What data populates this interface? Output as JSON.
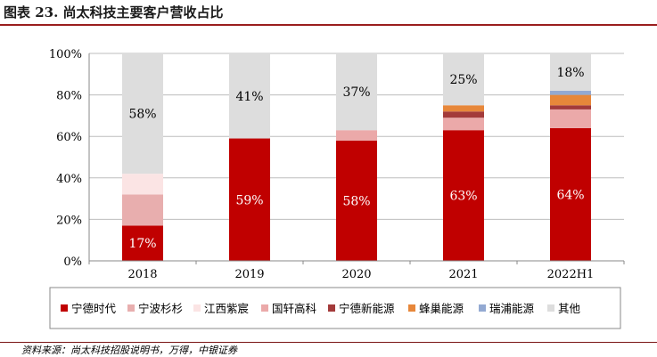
{
  "figure": {
    "title": "图表 23. 尚太科技主要客户营收占比",
    "source": "资料来源：尚太科技招股说明书，万得，中银证券"
  },
  "chart_data": {
    "type": "bar",
    "stacked": true,
    "categories": [
      "2018",
      "2019",
      "2020",
      "2021",
      "2022H1"
    ],
    "ylim": [
      0,
      100
    ],
    "yticks": [
      0,
      20,
      40,
      60,
      80,
      100
    ],
    "ytick_labels": [
      "0%",
      "20%",
      "40%",
      "60%",
      "80%",
      "100%"
    ],
    "grid": true,
    "legend_position": "bottom",
    "xlabel": "",
    "ylabel": "",
    "series": [
      {
        "name": "宁德时代",
        "color": "#c00000",
        "values": [
          17,
          59,
          58,
          63,
          64
        ]
      },
      {
        "name": "宁波杉杉",
        "color": "#e8aeae",
        "values": [
          15,
          0,
          0,
          0,
          0
        ]
      },
      {
        "name": "江西紫宸",
        "color": "#fbe4e4",
        "values": [
          10,
          0,
          0,
          0,
          0
        ]
      },
      {
        "name": "国轩高科",
        "color": "#eba9a9",
        "values": [
          0,
          0,
          5,
          6,
          9
        ]
      },
      {
        "name": "宁德新能源",
        "color": "#a33a3a",
        "values": [
          0,
          0,
          0,
          3,
          2
        ]
      },
      {
        "name": "蜂巢能源",
        "color": "#e7873a",
        "values": [
          0,
          0,
          0,
          3,
          5
        ]
      },
      {
        "name": "瑞浦能源",
        "color": "#93a9d2",
        "values": [
          0,
          0,
          0,
          0,
          2
        ]
      },
      {
        "name": "其他",
        "color": "#dddddd",
        "values": [
          58,
          41,
          37,
          25,
          18
        ]
      }
    ],
    "data_labels": [
      {
        "category": "2018",
        "series": "宁德时代",
        "text": "17%"
      },
      {
        "category": "2018",
        "series": "其他",
        "text": "58%"
      },
      {
        "category": "2019",
        "series": "宁德时代",
        "text": "59%"
      },
      {
        "category": "2019",
        "series": "其他",
        "text": "41%"
      },
      {
        "category": "2020",
        "series": "宁德时代",
        "text": "58%"
      },
      {
        "category": "2020",
        "series": "其他",
        "text": "37%"
      },
      {
        "category": "2021",
        "series": "宁德时代",
        "text": "63%"
      },
      {
        "category": "2021",
        "series": "其他",
        "text": "25%"
      },
      {
        "category": "2022H1",
        "series": "宁德时代",
        "text": "64%"
      },
      {
        "category": "2022H1",
        "series": "其他",
        "text": "18%"
      }
    ]
  }
}
